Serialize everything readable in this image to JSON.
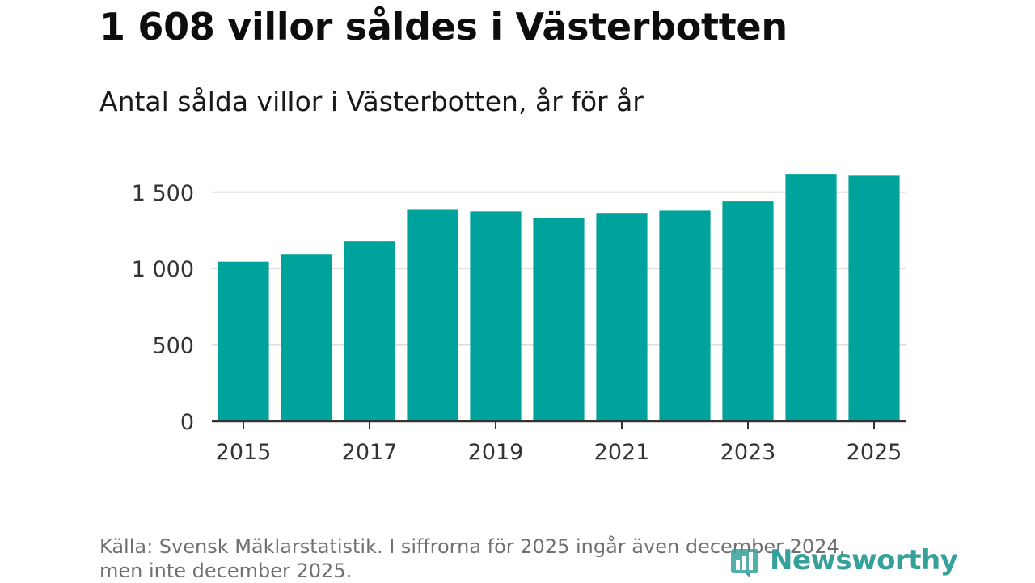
{
  "header": {
    "title": "1 608 villor såldes i Västerbotten",
    "subtitle": "Antal sålda villor i Västerbotten, år för år"
  },
  "footer": {
    "source_line1": "Källa: Svensk Mäklarstatistik. I siffrorna för 2025 ingår även december 2024,",
    "source_line2": "men inte december 2025.",
    "brand": "Newsworthy",
    "brand_icon": "bar-chart-logo-icon"
  },
  "colors": {
    "bar": "#00a39b",
    "grid": "#dddddd",
    "axis": "#333333",
    "brand": "#36a09a"
  },
  "chart_data": {
    "type": "bar",
    "title": "1 608 villor såldes i Västerbotten",
    "subtitle": "Antal sålda villor i Västerbotten, år för år",
    "categories": [
      "2015",
      "2016",
      "2017",
      "2018",
      "2019",
      "2020",
      "2021",
      "2022",
      "2023",
      "2024",
      "2025"
    ],
    "values": [
      1045,
      1095,
      1180,
      1385,
      1375,
      1330,
      1360,
      1380,
      1440,
      1620,
      1608
    ],
    "xlabel": "",
    "ylabel": "",
    "ylim": [
      0,
      1700
    ],
    "yticks": [
      0,
      500,
      1000,
      1500
    ],
    "ytick_labels": [
      "0",
      "500",
      "1 000",
      "1 500"
    ],
    "xtick_labels": [
      "2015",
      "2017",
      "2019",
      "2021",
      "2023",
      "2025"
    ],
    "grid": true,
    "source": "Svensk Mäklarstatistik"
  }
}
